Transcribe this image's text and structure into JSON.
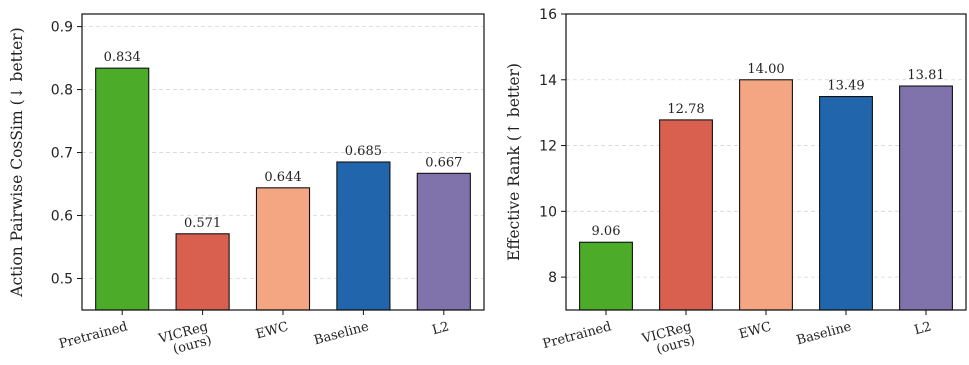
{
  "chart_data": [
    {
      "type": "bar",
      "categories": [
        "Pretrained",
        "VICReg\n(ours)",
        "EWC",
        "Baseline",
        "L2"
      ],
      "values": [
        0.834,
        0.571,
        0.644,
        0.685,
        0.667
      ],
      "value_labels": [
        "0.834",
        "0.571",
        "0.644",
        "0.685",
        "0.667"
      ],
      "colors": [
        "#4dab2a",
        "#d95f4e",
        "#f4a582",
        "#2166ac",
        "#8073ac"
      ],
      "ylabel": "Action Pairwise CosSim (↓ better)",
      "ylim": [
        0.45,
        0.92
      ],
      "yticks": [
        0.5,
        0.6,
        0.7,
        0.8,
        0.9
      ],
      "ytick_labels": [
        "0.5",
        "0.6",
        "0.7",
        "0.8",
        "0.9"
      ],
      "grid": true
    },
    {
      "type": "bar",
      "categories": [
        "Pretrained",
        "VICReg\n(ours)",
        "EWC",
        "Baseline",
        "L2"
      ],
      "values": [
        9.06,
        12.78,
        14.0,
        13.49,
        13.81
      ],
      "value_labels": [
        "9.06",
        "12.78",
        "14.00",
        "13.49",
        "13.81"
      ],
      "colors": [
        "#4dab2a",
        "#d95f4e",
        "#f4a582",
        "#2166ac",
        "#8073ac"
      ],
      "ylabel": "Effective Rank (↑ better)",
      "ylim": [
        7,
        16
      ],
      "yticks": [
        8,
        10,
        12,
        14,
        16
      ],
      "ytick_labels": [
        "8",
        "10",
        "12",
        "14",
        "16"
      ],
      "grid": true
    }
  ]
}
